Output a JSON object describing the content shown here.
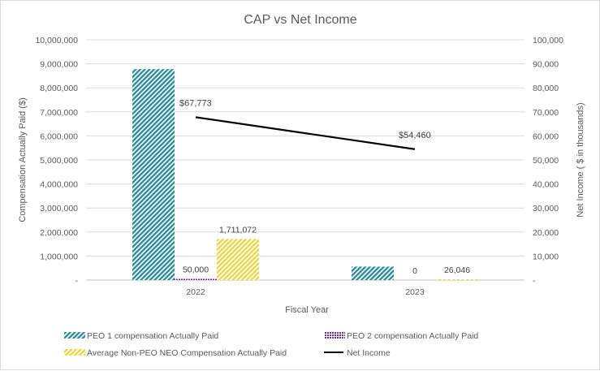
{
  "chart_data": {
    "type": "bar",
    "title": "CAP vs Net Income",
    "xlabel": "Fiscal Year",
    "ylabel": "Compensation Actually Paid ($)",
    "y2label": "Net Income ( $ in thousands)",
    "categories": [
      "2022",
      "2023"
    ],
    "ylim": [
      0,
      10000000
    ],
    "y2lim": [
      0,
      100000
    ],
    "yticks": [
      "-",
      "1,000,000",
      "2,000,000",
      "3,000,000",
      "4,000,000",
      "5,000,000",
      "6,000,000",
      "7,000,000",
      "8,000,000",
      "9,000,000",
      "10,000,000"
    ],
    "y2ticks": [
      "-",
      "10,000",
      "20,000",
      "30,000",
      "40,000",
      "50,000",
      "60,000",
      "70,000",
      "80,000",
      "90,000",
      "100,000"
    ],
    "grid": true,
    "legend_position": "bottom",
    "series": [
      {
        "name": "PEO 1 compensation Actually Paid",
        "type": "bar",
        "axis": "left",
        "values": [
          8780000,
          560000
        ],
        "labels": [
          "",
          ""
        ],
        "color": "#2e8b9a",
        "pattern": "diagonal-hatch"
      },
      {
        "name": "PEO 2 compensation Actually Paid",
        "type": "bar",
        "axis": "left",
        "values": [
          50000,
          0
        ],
        "labels": [
          "50,000",
          "0"
        ],
        "color": "#7030a0",
        "pattern": "dots"
      },
      {
        "name": "Average Non-PEO NEO Compensation Actually Paid",
        "type": "bar",
        "axis": "left",
        "values": [
          1711072,
          26046
        ],
        "labels": [
          "1,711,072",
          "26,046"
        ],
        "color": "#e8d64a",
        "pattern": "diagonal-hatch"
      },
      {
        "name": "Net Income",
        "type": "line",
        "axis": "right",
        "values": [
          67773,
          54460
        ],
        "labels": [
          "$67,773",
          "$54,460"
        ],
        "color": "#000000"
      }
    ]
  }
}
